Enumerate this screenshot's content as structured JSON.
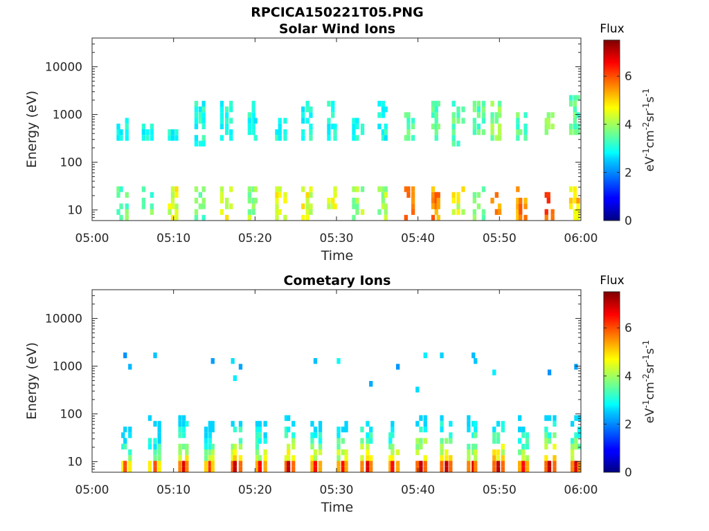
{
  "figure": {
    "title": "RPCICA150221T05.PNG"
  },
  "colorbar": {
    "title": "Flux",
    "unit_label": "eV-1cm-2sr-1s-1",
    "ticks": [
      "0",
      "2",
      "4",
      "6"
    ],
    "range": [
      0,
      7.5
    ],
    "colormap": "jet"
  },
  "chart_data": [
    {
      "type": "heatmap",
      "title": "Solar Wind Ions",
      "xlabel": "Time",
      "ylabel": "Energy (eV)",
      "x_ticks": [
        "05:00",
        "05:10",
        "05:20",
        "05:30",
        "05:40",
        "05:50",
        "06:00"
      ],
      "y_ticks": [
        "10",
        "100",
        "1000",
        "10000"
      ],
      "y_scale": "log",
      "ylim": [
        6,
        40000
      ],
      "xlim_minutes": [
        0,
        60
      ],
      "bursts": [
        {
          "t": 3.0,
          "z": 3.0,
          "sw_lo": 300,
          "sw_hi": 800,
          "lo_z": 3.5
        },
        {
          "t": 6.2,
          "z": 3.0,
          "sw_lo": 300,
          "sw_hi": 500,
          "lo_z": 3.5
        },
        {
          "t": 9.3,
          "z": 3.0,
          "sw_lo": 250,
          "sw_hi": 450,
          "lo_z": 4.5
        },
        {
          "t": 12.5,
          "z": 3.0,
          "sw_lo": 250,
          "sw_hi": 1600,
          "lo_z": 3.5
        },
        {
          "t": 15.8,
          "z": 3.0,
          "sw_lo": 300,
          "sw_hi": 1600,
          "lo_z": 4.5
        },
        {
          "t": 19.0,
          "z": 3.0,
          "sw_lo": 300,
          "sw_hi": 1600,
          "lo_z": 4.0
        },
        {
          "t": 22.5,
          "z": 3.0,
          "sw_lo": 300,
          "sw_hi": 800,
          "lo_z": 4.5
        },
        {
          "t": 25.8,
          "z": 3.0,
          "sw_lo": 300,
          "sw_hi": 1500,
          "lo_z": 4.5
        },
        {
          "t": 28.8,
          "z": 3.0,
          "sw_lo": 300,
          "sw_hi": 1500,
          "lo_z": 4.5
        },
        {
          "t": 32.0,
          "z": 3.0,
          "sw_lo": 300,
          "sw_hi": 800,
          "lo_z": 4.0
        },
        {
          "t": 35.0,
          "z": 3.0,
          "sw_lo": 300,
          "sw_hi": 1600,
          "lo_z": 4.0
        },
        {
          "t": 38.3,
          "z": 3.5,
          "sw_lo": 350,
          "sw_hi": 900,
          "lo_z": 5.5
        },
        {
          "t": 41.5,
          "z": 3.5,
          "sw_lo": 300,
          "sw_hi": 1500,
          "lo_z": 5.5
        },
        {
          "t": 44.3,
          "z": 3.5,
          "sw_lo": 250,
          "sw_hi": 1500,
          "lo_z": 4.5
        },
        {
          "t": 46.8,
          "z": 3.5,
          "sw_lo": 350,
          "sw_hi": 1600,
          "lo_z": 3.5
        },
        {
          "t": 49.0,
          "z": 3.8,
          "sw_lo": 300,
          "sw_hi": 1500,
          "lo_z": 5.5
        },
        {
          "t": 52.0,
          "z": 3.5,
          "sw_lo": 300,
          "sw_hi": 1000,
          "lo_z": 5.5
        },
        {
          "t": 55.5,
          "z": 3.8,
          "sw_lo": 400,
          "sw_hi": 900,
          "lo_z": 6.0
        },
        {
          "t": 58.5,
          "z": 3.5,
          "sw_lo": 400,
          "sw_hi": 2000,
          "lo_z": 5.0
        }
      ]
    },
    {
      "type": "heatmap",
      "title": "Cometary Ions",
      "xlabel": "Time",
      "ylabel": "Energy (eV)",
      "x_ticks": [
        "05:00",
        "05:10",
        "05:20",
        "05:30",
        "05:40",
        "05:50",
        "06:00"
      ],
      "y_ticks": [
        "10",
        "100",
        "1000",
        "10000"
      ],
      "y_scale": "log",
      "ylim": [
        6,
        40000
      ],
      "xlim_minutes": [
        0,
        60
      ],
      "bursts": [
        {
          "t": 3.5,
          "z": 6.0,
          "hi": 45
        },
        {
          "t": 7.0,
          "z": 6.0,
          "hi": 80
        },
        {
          "t": 10.5,
          "z": 6.8,
          "hi": 80
        },
        {
          "t": 13.8,
          "z": 6.2,
          "hi": 70
        },
        {
          "t": 17.0,
          "z": 7.0,
          "hi": 70
        },
        {
          "t": 20.0,
          "z": 6.5,
          "hi": 70
        },
        {
          "t": 23.5,
          "z": 7.0,
          "hi": 80
        },
        {
          "t": 26.8,
          "z": 6.5,
          "hi": 70
        },
        {
          "t": 30.0,
          "z": 6.5,
          "hi": 70
        },
        {
          "t": 33.0,
          "z": 6.8,
          "hi": 70
        },
        {
          "t": 36.3,
          "z": 6.5,
          "hi": 70
        },
        {
          "t": 39.8,
          "z": 7.0,
          "hi": 80
        },
        {
          "t": 42.8,
          "z": 7.0,
          "hi": 80
        },
        {
          "t": 46.0,
          "z": 6.8,
          "hi": 80
        },
        {
          "t": 49.2,
          "z": 7.0,
          "hi": 70
        },
        {
          "t": 52.2,
          "z": 6.5,
          "hi": 80
        },
        {
          "t": 55.5,
          "z": 7.0,
          "hi": 80
        },
        {
          "t": 58.8,
          "z": 6.8,
          "hi": 80
        }
      ]
    }
  ]
}
